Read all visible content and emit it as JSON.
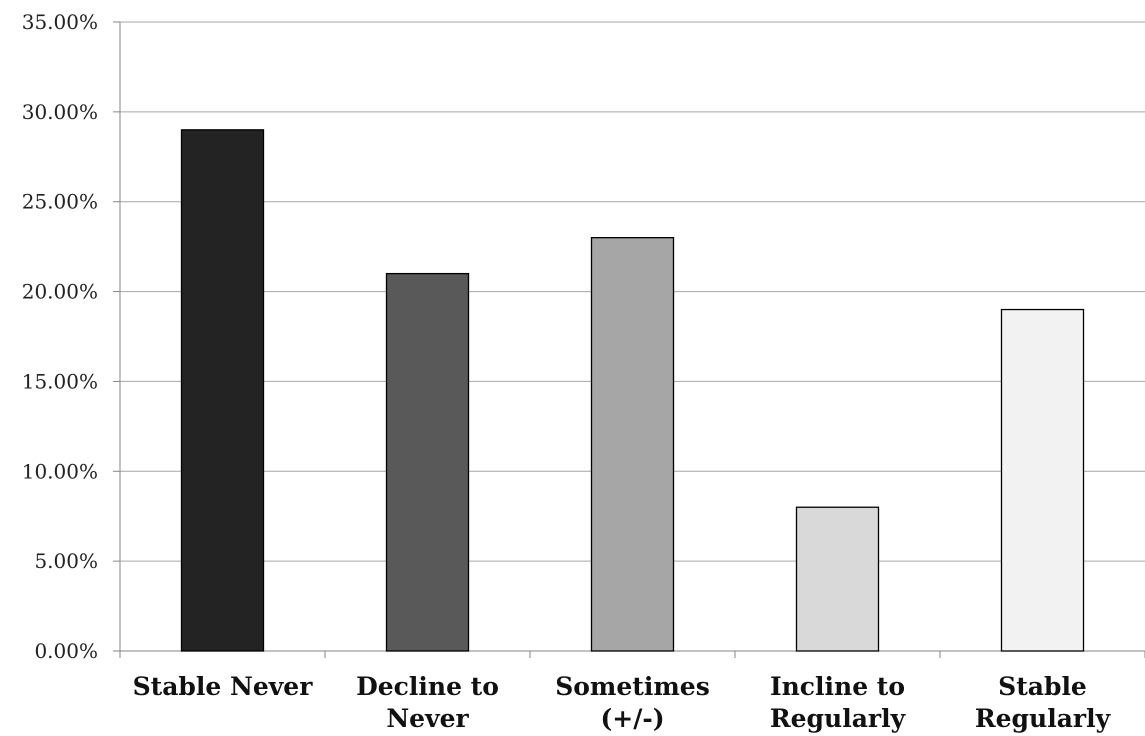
{
  "chart_data": {
    "type": "bar",
    "title": "",
    "xlabel": "",
    "ylabel": "",
    "categories": [
      [
        "Stable Never"
      ],
      [
        "Decline to",
        "Never"
      ],
      [
        "Sometimes",
        "(+/-)"
      ],
      [
        "Incline to",
        "Regularly"
      ],
      [
        "Stable",
        "Regularly"
      ]
    ],
    "values": [
      0.29,
      0.21,
      0.23,
      0.08,
      0.19
    ],
    "bar_colors": [
      "#232323",
      "#595959",
      "#a6a6a6",
      "#d9d9d9",
      "#f2f2f2"
    ],
    "ylim": [
      0,
      0.35
    ],
    "y_ticks": [
      0,
      0.05,
      0.1,
      0.15,
      0.2,
      0.25,
      0.3,
      0.35
    ],
    "y_tick_labels": [
      "0.00%",
      "5.00%",
      "10.00%",
      "15.00%",
      "20.00%",
      "25.00%",
      "30.00%",
      "35.00%"
    ],
    "grid": true,
    "legend": "none"
  }
}
